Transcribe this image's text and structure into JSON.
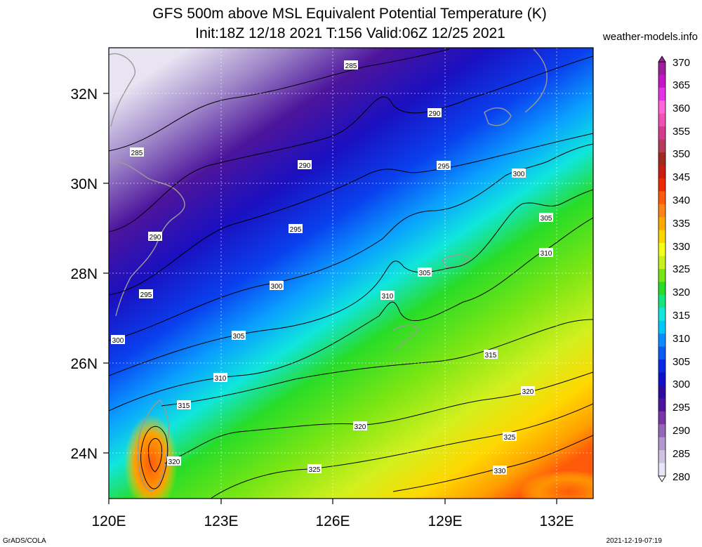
{
  "title_line1": "GFS 500m above MSL Equivalent Potential Temperature (K)",
  "title_line2": "Init:18Z 12/18 2021 T:156 Valid:06Z 12/25 2021",
  "site": "weather-models.info",
  "footer_left": "GrADS/COLA",
  "footer_right": "2021-12-19-07:19",
  "map": {
    "lon_ticks": [
      "120E",
      "123E",
      "126E",
      "129E",
      "132E"
    ],
    "lat_ticks": [
      "32N",
      "30N",
      "28N",
      "26N",
      "24N"
    ],
    "lon_range": [
      120,
      133
    ],
    "lat_range": [
      23,
      33
    ]
  },
  "colorbar": {
    "labels": [
      "370",
      "365",
      "360",
      "355",
      "350",
      "345",
      "340",
      "335",
      "330",
      "325",
      "320",
      "315",
      "310",
      "305",
      "300",
      "295",
      "290",
      "285",
      "280"
    ],
    "colors": [
      "#e6e6f5",
      "#cfc3e3",
      "#b197cf",
      "#9466b9",
      "#7a35a6",
      "#4d149c",
      "#2d0aa0",
      "#1010c8",
      "#0a28e6",
      "#0a5af5",
      "#0a8cff",
      "#00c8ff",
      "#10e6dc",
      "#14e682",
      "#28dc28",
      "#78e614",
      "#c8f01e",
      "#f5ff1e",
      "#ffd700",
      "#ffaa00",
      "#ff8214",
      "#ff5a0a",
      "#f02a00",
      "#c81e14",
      "#a0281e",
      "#b43c5a",
      "#d23c8c",
      "#f050b4",
      "#ff64dc",
      "#e632e6",
      "#c814c8",
      "#a01e9b"
    ],
    "units": "K",
    "min": 280,
    "max": 370,
    "step": 5
  },
  "contours": [
    {
      "level": "285",
      "labels": [
        "285",
        "285"
      ]
    },
    {
      "level": "290",
      "labels": [
        "290",
        "290",
        "290"
      ]
    },
    {
      "level": "295",
      "labels": [
        "295",
        "295",
        "295"
      ]
    },
    {
      "level": "300",
      "labels": [
        "300",
        "300",
        "300"
      ]
    },
    {
      "level": "305",
      "labels": [
        "305",
        "305",
        "305"
      ]
    },
    {
      "level": "310",
      "labels": [
        "310",
        "310",
        "310"
      ]
    },
    {
      "level": "315",
      "labels": [
        "315",
        "315"
      ]
    },
    {
      "level": "320",
      "labels": [
        "320",
        "320",
        "320"
      ]
    },
    {
      "level": "325",
      "labels": [
        "325",
        "325"
      ]
    },
    {
      "level": "330",
      "labels": [
        "330"
      ]
    }
  ]
}
